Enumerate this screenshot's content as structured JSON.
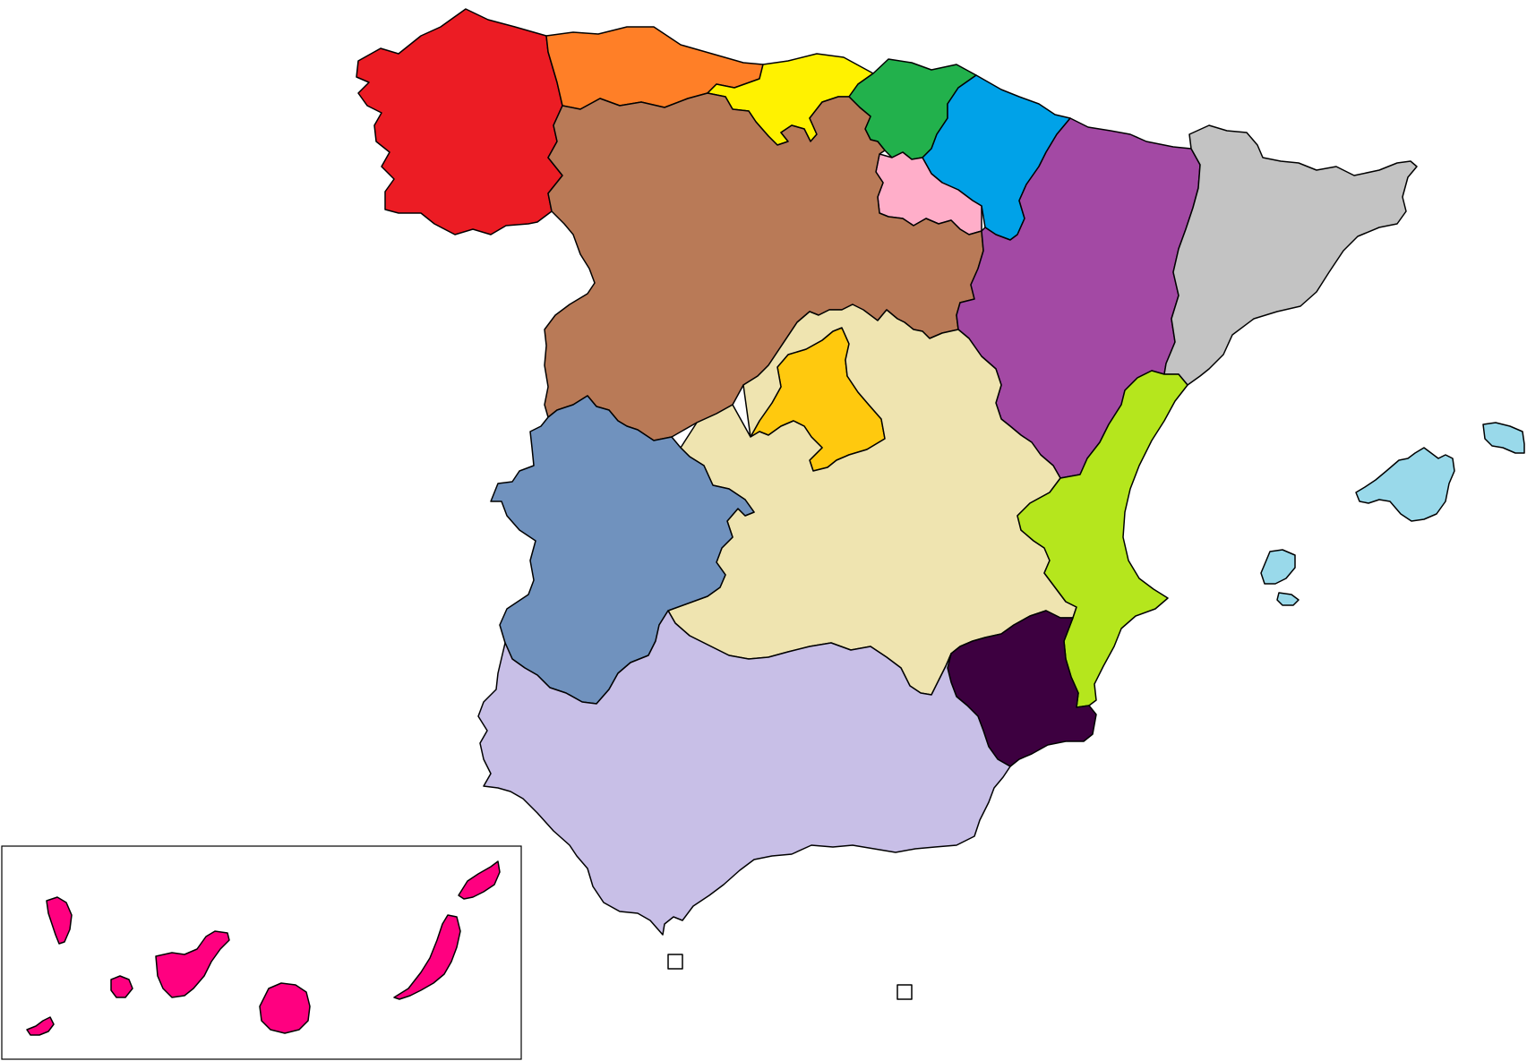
{
  "map": {
    "type": "choropleth-regions",
    "country": "Spain",
    "has_labels": false,
    "background": "#ffffff",
    "border_color": "#000000",
    "regions": [
      {
        "id": "galicia",
        "color": "#ec1c24"
      },
      {
        "id": "asturias",
        "color": "#ff7f27"
      },
      {
        "id": "cantabria",
        "color": "#fff200"
      },
      {
        "id": "pais-vasco",
        "color": "#22b14c"
      },
      {
        "id": "navarra",
        "color": "#00a2e8"
      },
      {
        "id": "la-rioja",
        "color": "#ffaec9"
      },
      {
        "id": "castilla-y-leon",
        "color": "#b97a57"
      },
      {
        "id": "aragon",
        "color": "#a349a4"
      },
      {
        "id": "cataluna",
        "color": "#c3c3c3"
      },
      {
        "id": "madrid",
        "color": "#ffc90e"
      },
      {
        "id": "castilla-la-mancha",
        "color": "#efe4b0"
      },
      {
        "id": "extremadura",
        "color": "#7092be"
      },
      {
        "id": "comunidad-valenciana",
        "color": "#b5e61d"
      },
      {
        "id": "murcia",
        "color": "#3d0040"
      },
      {
        "id": "andalucia",
        "color": "#c8bfe7"
      },
      {
        "id": "islas-baleares",
        "color": "#99d9ea"
      },
      {
        "id": "islas-canarias",
        "color": "#ff0080"
      },
      {
        "id": "ceuta",
        "color": "#ffffff"
      },
      {
        "id": "melilla",
        "color": "#ffffff"
      }
    ],
    "inset": {
      "id": "canarias-inset"
    }
  }
}
